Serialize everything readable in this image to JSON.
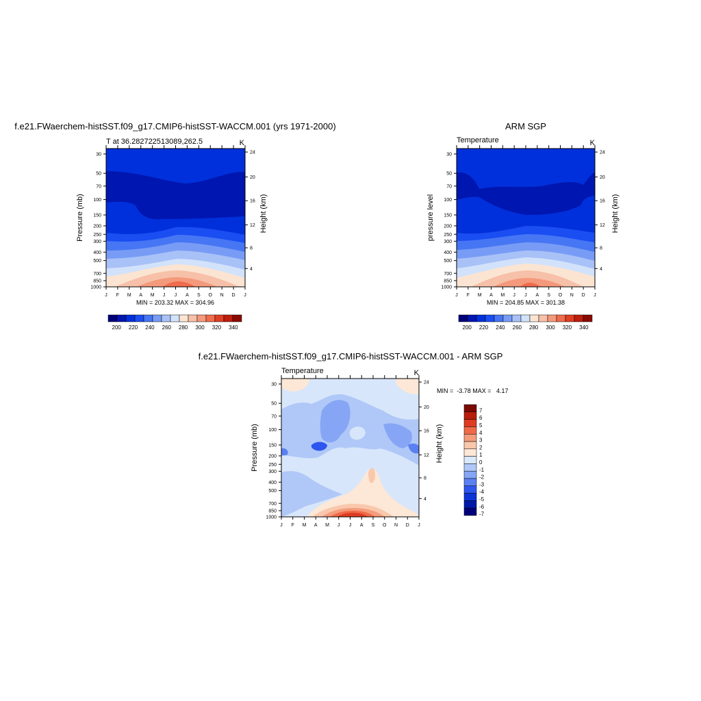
{
  "chart_data": [
    {
      "type": "heatmap",
      "title": "f.e21.FWaerchem-histSST.f09_g17.CMIP6-histSST-WACCM.001 (yrs 1971-2000)",
      "left_label": "T at 36.282722513089,262.5",
      "right_label": "K",
      "ylabel": "Pressure (mb)",
      "ylabel_right": "Height (km)",
      "x_ticks": [
        "J",
        "F",
        "M",
        "A",
        "M",
        "J",
        "J",
        "A",
        "S",
        "O",
        "N",
        "D",
        "J"
      ],
      "y_ticks": [
        "30",
        "50",
        "70",
        "100",
        "150",
        "200",
        "250",
        "300",
        "400",
        "500",
        "700",
        "850",
        "1000"
      ],
      "y_right_ticks": [
        "24",
        "20",
        "16",
        "12",
        "8",
        "4"
      ],
      "stats": "MIN = 203.32 MAX = 304.96",
      "colorbar_ticks": [
        "200",
        "220",
        "240",
        "260",
        "280",
        "300",
        "320",
        "340"
      ],
      "z_range": [
        190,
        350
      ]
    },
    {
      "type": "heatmap",
      "title": "ARM SGP",
      "left_label": "Temperature",
      "right_label": "K",
      "ylabel": "pressure level",
      "ylabel_right": "Height (km)",
      "x_ticks": [
        "J",
        "F",
        "M",
        "A",
        "M",
        "J",
        "J",
        "A",
        "S",
        "O",
        "N",
        "D",
        "J"
      ],
      "y_ticks": [
        "30",
        "50",
        "70",
        "100",
        "150",
        "200",
        "250",
        "300",
        "400",
        "500",
        "700",
        "850",
        "1000"
      ],
      "y_right_ticks": [
        "24",
        "20",
        "16",
        "12",
        "8",
        "4"
      ],
      "stats": "MIN = 204.85 MAX = 301.38",
      "colorbar_ticks": [
        "200",
        "220",
        "240",
        "260",
        "280",
        "300",
        "320",
        "340"
      ],
      "z_range": [
        190,
        350
      ]
    },
    {
      "type": "heatmap",
      "title": "f.e21.FWaerchem-histSST.f09_g17.CMIP6-histSST-WACCM.001 - ARM SGP",
      "left_label": "Temperature",
      "right_label": "K",
      "ylabel": "Pressure (mb)",
      "ylabel_right": "Height (km)",
      "x_ticks": [
        "J",
        "F",
        "M",
        "A",
        "M",
        "J",
        "J",
        "A",
        "S",
        "O",
        "N",
        "D",
        "J"
      ],
      "y_ticks": [
        "30",
        "50",
        "70",
        "100",
        "150",
        "200",
        "250",
        "300",
        "400",
        "500",
        "700",
        "850",
        "1000"
      ],
      "y_right_ticks": [
        "24",
        "20",
        "16",
        "12",
        "8",
        "4"
      ],
      "stats": "MIN =  -3.78 MAX =   4.17",
      "colorbar_ticks": [
        "7",
        "6",
        "5",
        "4",
        "3",
        "2",
        "1",
        "0",
        "-1",
        "-2",
        "-3",
        "-4",
        "-5",
        "-6",
        "-7"
      ],
      "z_range": [
        -7.5,
        7.5
      ]
    }
  ],
  "colors": {
    "temperature_scale": [
      "#00007a",
      "#0016b0",
      "#0030db",
      "#1a4ef2",
      "#4676f3",
      "#789cf5",
      "#a8c1f7",
      "#d2e2fb",
      "#fbe4d2",
      "#f7c0a8",
      "#f4997b",
      "#f06c4c",
      "#e03e22",
      "#bd1e0d",
      "#8a0a02"
    ],
    "difference_scale": [
      "#7a0a02",
      "#b81e0c",
      "#dd3c20",
      "#f06a48",
      "#f59c7c",
      "#f9c8ac",
      "#fde7d6",
      "#dae8fb",
      "#b0c8f8",
      "#86a6f5",
      "#5a80f2",
      "#2d56ee",
      "#0c34d8",
      "#0018a8",
      "#00007a"
    ]
  }
}
